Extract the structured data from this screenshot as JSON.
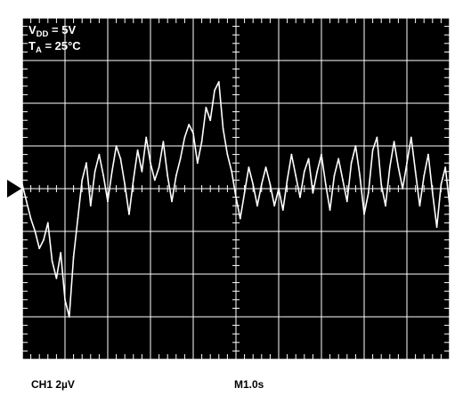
{
  "colors": {
    "screen": "#000000",
    "grid": "#ffffff",
    "trace": "#ffffff",
    "marker": "#000000"
  },
  "icons": {
    "ground_marker": "triangle-right-marker"
  },
  "conditions": {
    "vdd_prefix": "V",
    "vdd_sub": "DD",
    "vdd_value": " = 5V",
    "ta_prefix": "T",
    "ta_sub": "A",
    "ta_value": " = 25°C"
  },
  "status_bar": {
    "channel": "CH1  2µV",
    "timebase": "M1.0s"
  },
  "chart_data": {
    "type": "line",
    "title": "",
    "xlabel": "",
    "ylabel": "",
    "grid": true,
    "divisions": {
      "x": 10,
      "y": 8
    },
    "scale": {
      "volts_per_div": "2µV",
      "seconds_per_div": "1.0s"
    },
    "xlim": [
      0,
      10
    ],
    "ylim": [
      -8,
      8
    ],
    "series": [
      {
        "name": "",
        "x": [
          0,
          0.1,
          0.2,
          0.3,
          0.4,
          0.5,
          0.6,
          0.7,
          0.8,
          0.9,
          1.0,
          1.1,
          1.2,
          1.3,
          1.4,
          1.5,
          1.6,
          1.7,
          1.8,
          1.9,
          2.0,
          2.1,
          2.2,
          2.3,
          2.4,
          2.5,
          2.6,
          2.7,
          2.8,
          2.9,
          3.0,
          3.1,
          3.2,
          3.3,
          3.4,
          3.5,
          3.6,
          3.7,
          3.8,
          3.9,
          4.0,
          4.1,
          4.2,
          4.3,
          4.4,
          4.5,
          4.6,
          4.7,
          4.8,
          4.9,
          5.0,
          5.1,
          5.2,
          5.3,
          5.4,
          5.5,
          5.6,
          5.7,
          5.8,
          5.9,
          6.0,
          6.1,
          6.2,
          6.3,
          6.4,
          6.5,
          6.6,
          6.7,
          6.8,
          6.9,
          7.0,
          7.1,
          7.2,
          7.3,
          7.4,
          7.5,
          7.6,
          7.7,
          7.8,
          7.9,
          8.0,
          8.1,
          8.2,
          8.3,
          8.4,
          8.5,
          8.6,
          8.7,
          8.8,
          8.9,
          9.0,
          9.1,
          9.2,
          9.3,
          9.4,
          9.5,
          9.6,
          9.7,
          9.8,
          9.9,
          10.0
        ],
        "y": [
          0.2,
          -0.6,
          -1.4,
          -2.0,
          -2.8,
          -2.4,
          -1.6,
          -3.4,
          -4.2,
          -3.0,
          -5.2,
          -6.0,
          -3.2,
          -1.4,
          0.4,
          1.2,
          -0.8,
          0.8,
          1.6,
          0.6,
          -0.6,
          0.8,
          2.0,
          1.4,
          0.2,
          -1.2,
          0.4,
          1.8,
          0.8,
          2.4,
          1.2,
          0.4,
          1.0,
          2.2,
          0.6,
          -0.6,
          0.6,
          1.4,
          2.4,
          3.0,
          2.6,
          1.2,
          2.2,
          3.8,
          3.2,
          4.6,
          5.0,
          2.8,
          1.6,
          0.8,
          -0.4,
          -1.4,
          -0.2,
          1.0,
          0.2,
          -0.8,
          0.2,
          1.0,
          0.2,
          -0.8,
          0.0,
          -1.0,
          0.4,
          1.6,
          0.6,
          -0.4,
          0.8,
          1.4,
          -0.2,
          0.8,
          1.6,
          0.2,
          -1.0,
          0.6,
          1.4,
          0.4,
          -0.6,
          1.2,
          2.0,
          0.6,
          -1.2,
          -0.2,
          1.8,
          2.4,
          0.2,
          -0.8,
          1.0,
          2.2,
          1.0,
          0.0,
          1.2,
          2.4,
          0.8,
          -0.8,
          0.6,
          1.6,
          -0.2,
          -1.8,
          0.2,
          1.0,
          -0.8
        ]
      }
    ]
  }
}
